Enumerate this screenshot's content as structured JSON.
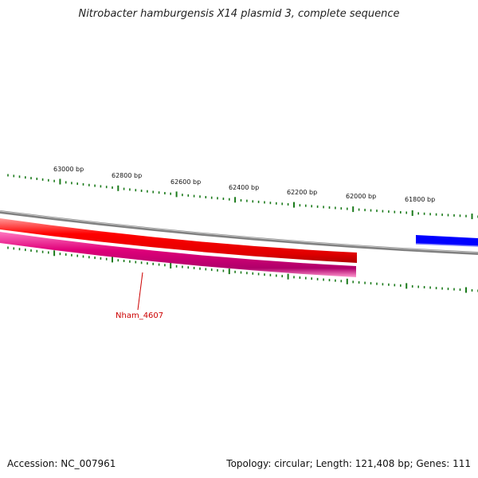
{
  "title": "Nitrobacter hamburgensis X14 plasmid 3, complete sequence",
  "footer": {
    "accession": "Accession: NC_007961",
    "summary": "Topology: circular; Length: 121,408 bp; Genes: 111"
  },
  "scale": {
    "major_labels": [
      "63000 bp",
      "62800 bp",
      "62600 bp",
      "62400 bp",
      "62200 bp",
      "62000 bp",
      "61800 bp"
    ]
  },
  "features": {
    "gene_label": "Nham_4607"
  },
  "colors": {
    "backbone": "#808080",
    "gene": "#ff0000",
    "cds": "#e0007a",
    "other_gene": "#0000ff",
    "ticks": "#1a7a1a",
    "label": "#cc0000"
  }
}
